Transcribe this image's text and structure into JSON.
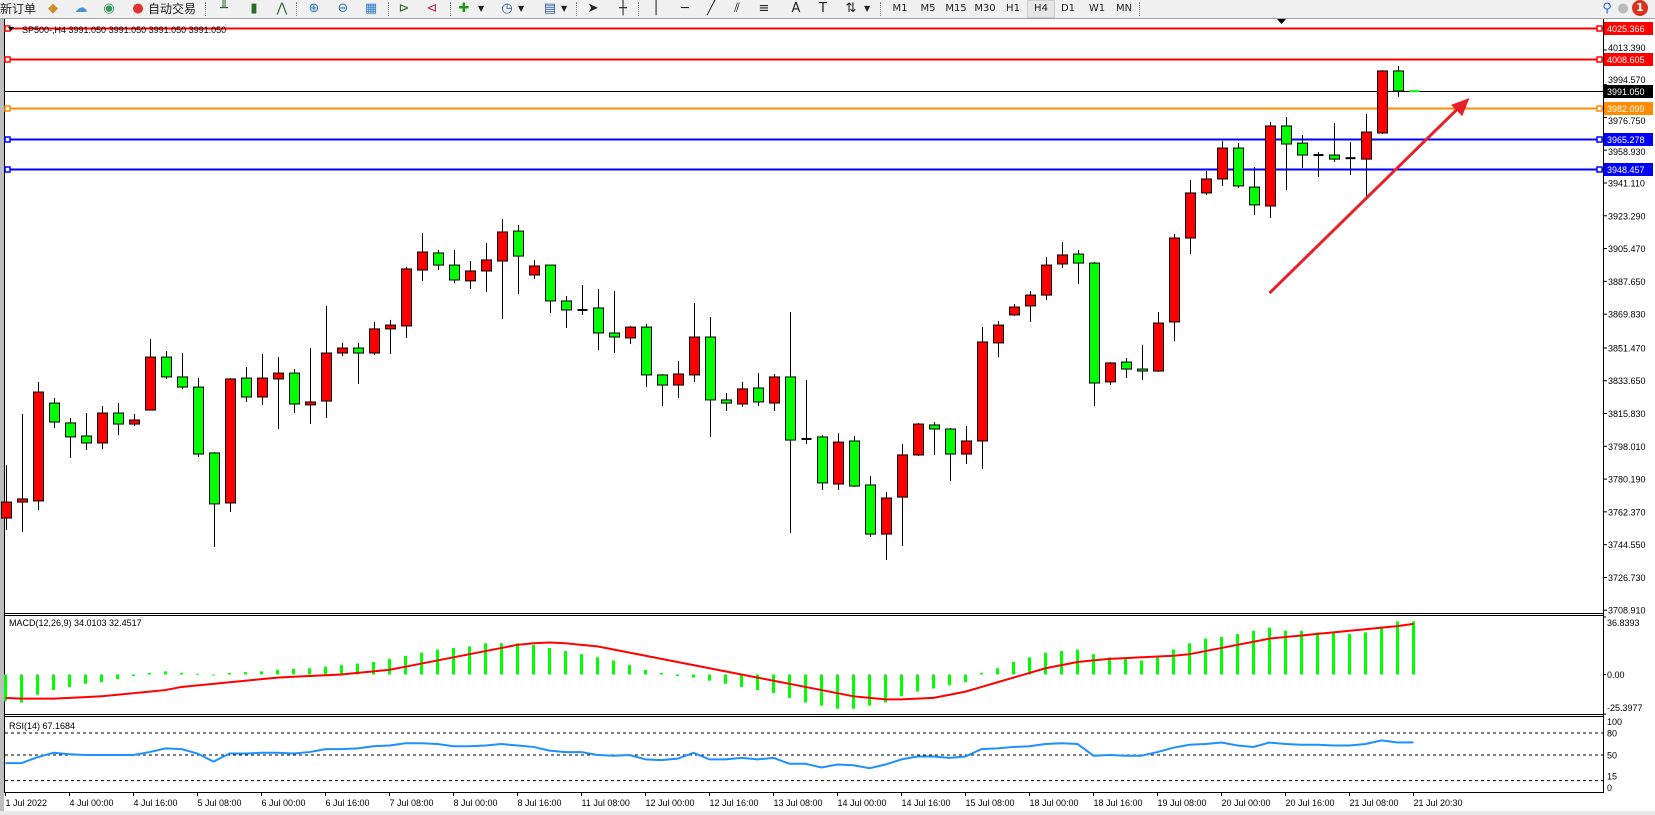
{
  "toolbar": {
    "new_order_label": "新订单",
    "auto_trading_label": "自动交易",
    "timeframes": [
      "M1",
      "M5",
      "M15",
      "M30",
      "H1",
      "H4",
      "D1",
      "W1",
      "MN"
    ],
    "active_timeframe": "H4",
    "notification_count": "1",
    "icons": [
      "metaeditor-icon",
      "market-watch-icon",
      "signals-icon",
      "auto-trading-icon",
      "bar-chart-icon",
      "candlestick-icon",
      "line-chart-icon",
      "zoom-in-icon",
      "zoom-out-icon",
      "tile-windows-icon",
      "autoscroll-icon",
      "chart-shift-icon",
      "indicators-icon",
      "periods-icon",
      "templates-icon",
      "cursor-icon",
      "crosshair-icon",
      "vertical-line-icon",
      "horizontal-line-icon",
      "trendline-icon",
      "equidistant-channel-icon",
      "fibonacci-icon",
      "text-icon",
      "text-label-icon",
      "arrows-icon",
      "search-icon",
      "notification-icon"
    ]
  },
  "chart": {
    "header": "SP500-,H4  3991.050 3991.050 3991.050 3991.050",
    "symbol": "SP500-",
    "timeframe": "H4",
    "bull_color": "#FF0000",
    "bear_color": "#00FF00",
    "price_ticks": [
      "4013.390",
      "3994.570",
      "3976.750",
      "3958.930",
      "3941.110",
      "3923.290",
      "3905.470",
      "3887.650",
      "3869.830",
      "3851.470",
      "3833.650",
      "3815.830",
      "3798.010",
      "3780.190",
      "3762.370",
      "3744.550",
      "3726.730",
      "3708.910"
    ],
    "horizontal_lines": [
      {
        "price": "4025.366",
        "color": "#FF0000"
      },
      {
        "price": "4008.605",
        "color": "#FF0000"
      },
      {
        "price": "3991.050",
        "color": "#000000"
      },
      {
        "price": "3982.099",
        "color": "#FF8C00"
      },
      {
        "price": "3965.278",
        "color": "#0000FF"
      },
      {
        "price": "3948.457",
        "color": "#0000FF"
      }
    ],
    "arrow": {
      "from": {
        "bar": 79,
        "price": 3881.3
      },
      "to": {
        "bar": 91.5,
        "price": 3987.3
      },
      "color": "#E8202A"
    },
    "candles_ohlc": [
      [
        3759.0,
        3787.8,
        3752.5,
        3767.7
      ],
      [
        3767.7,
        3815.6,
        3751.4,
        3769.4
      ],
      [
        3768.3,
        3833.0,
        3763.4,
        3827.5
      ],
      [
        3821.5,
        3824.3,
        3808.0,
        3811.2
      ],
      [
        3810.7,
        3813.4,
        3791.7,
        3803.1
      ],
      [
        3803.6,
        3816.1,
        3796.0,
        3799.8
      ],
      [
        3799.8,
        3819.9,
        3796.5,
        3816.1
      ],
      [
        3816.1,
        3821.5,
        3804.1,
        3810.1
      ],
      [
        3810.1,
        3815.6,
        3809.0,
        3812.3
      ],
      [
        3817.7,
        3856.3,
        3817.7,
        3846.5
      ],
      [
        3846.5,
        3849.8,
        3834.6,
        3835.7
      ],
      [
        3835.7,
        3848.7,
        3829.2,
        3830.2
      ],
      [
        3830.2,
        3835.1,
        3792.2,
        3793.8
      ],
      [
        3794.4,
        3794.9,
        3743.3,
        3766.7
      ],
      [
        3767.2,
        3835.1,
        3762.3,
        3834.6
      ],
      [
        3835.1,
        3841.1,
        3822.1,
        3824.8
      ],
      [
        3824.8,
        3848.2,
        3820.5,
        3835.1
      ],
      [
        3834.6,
        3846.5,
        3807.4,
        3837.8
      ],
      [
        3837.8,
        3840.0,
        3816.1,
        3821.0
      ],
      [
        3820.5,
        3851.4,
        3810.1,
        3822.1
      ],
      [
        3822.6,
        3874.3,
        3813.4,
        3848.7
      ],
      [
        3848.7,
        3854.2,
        3847.1,
        3851.4
      ],
      [
        3851.4,
        3854.2,
        3831.9,
        3848.7
      ],
      [
        3848.7,
        3865.6,
        3847.6,
        3861.8
      ],
      [
        3861.8,
        3866.7,
        3848.2,
        3863.9
      ],
      [
        3863.4,
        3895.5,
        3856.9,
        3894.4
      ],
      [
        3893.8,
        3913.9,
        3887.9,
        3903.6
      ],
      [
        3903.1,
        3904.7,
        3893.8,
        3896.5
      ],
      [
        3896.5,
        3904.7,
        3886.7,
        3888.4
      ],
      [
        3887.9,
        3898.7,
        3883.5,
        3893.3
      ],
      [
        3893.3,
        3908.5,
        3881.9,
        3899.3
      ],
      [
        3898.7,
        3921.5,
        3867.2,
        3914.5
      ],
      [
        3915.0,
        3918.3,
        3880.8,
        3901.4
      ],
      [
        3891.1,
        3899.3,
        3889.0,
        3896.0
      ],
      [
        3896.5,
        3896.5,
        3870.5,
        3877.0
      ],
      [
        3877.0,
        3879.7,
        3862.3,
        3872.1
      ],
      [
        3872.1,
        3885.7,
        3869.4,
        3872.0
      ],
      [
        3873.2,
        3883.5,
        3850.3,
        3859.6
      ],
      [
        3859.6,
        3882.4,
        3848.7,
        3857.4
      ],
      [
        3856.9,
        3863.4,
        3853.6,
        3862.8
      ],
      [
        3862.8,
        3864.5,
        3830.2,
        3836.8
      ],
      [
        3836.8,
        3837.3,
        3819.9,
        3831.3
      ],
      [
        3831.3,
        3844.4,
        3824.3,
        3837.3
      ],
      [
        3836.8,
        3875.9,
        3833.0,
        3857.4
      ],
      [
        3857.4,
        3868.3,
        3803.1,
        3823.2
      ],
      [
        3823.2,
        3827.0,
        3817.2,
        3821.5
      ],
      [
        3821.0,
        3833.0,
        3819.4,
        3829.2
      ],
      [
        3829.7,
        3837.8,
        3819.9,
        3822.1
      ],
      [
        3821.5,
        3837.3,
        3817.2,
        3835.7
      ],
      [
        3835.7,
        3871.0,
        3750.9,
        3801.4
      ],
      [
        3802.0,
        3834.0,
        3799.3,
        3801.9
      ],
      [
        3803.1,
        3804.1,
        3774.3,
        3778.1
      ],
      [
        3777.5,
        3805.2,
        3774.3,
        3800.3
      ],
      [
        3800.9,
        3803.6,
        3775.9,
        3776.4
      ],
      [
        3777.0,
        3781.9,
        3748.7,
        3750.3
      ],
      [
        3750.3,
        3773.2,
        3736.2,
        3769.9
      ],
      [
        3770.4,
        3799.3,
        3743.8,
        3793.3
      ],
      [
        3793.3,
        3810.7,
        3792.7,
        3810.1
      ],
      [
        3809.6,
        3811.2,
        3793.3,
        3807.4
      ],
      [
        3807.4,
        3808.0,
        3779.2,
        3793.8
      ],
      [
        3793.8,
        3809.0,
        3788.4,
        3800.9
      ],
      [
        3800.9,
        3862.8,
        3785.7,
        3854.7
      ],
      [
        3854.2,
        3866.1,
        3846.5,
        3863.9
      ],
      [
        3869.4,
        3875.3,
        3868.8,
        3873.7
      ],
      [
        3874.3,
        3882.4,
        3865.6,
        3880.2
      ],
      [
        3880.2,
        3900.9,
        3877.5,
        3896.5
      ],
      [
        3897.1,
        3909.0,
        3894.9,
        3902.0
      ],
      [
        3902.5,
        3904.7,
        3886.2,
        3897.6
      ],
      [
        3897.6,
        3898.2,
        3819.9,
        3832.4
      ],
      [
        3833.0,
        3843.8,
        3831.3,
        3843.3
      ],
      [
        3843.8,
        3846.0,
        3835.1,
        3840.0
      ],
      [
        3840.0,
        3853.1,
        3834.0,
        3838.9
      ],
      [
        3838.9,
        3871.0,
        3838.4,
        3865.0
      ],
      [
        3865.6,
        3913.4,
        3855.2,
        3911.2
      ],
      [
        3911.2,
        3942.7,
        3902.5,
        3935.7
      ],
      [
        3935.7,
        3947.6,
        3934.6,
        3943.3
      ],
      [
        3943.3,
        3963.9,
        3939.5,
        3960.1
      ],
      [
        3960.1,
        3962.8,
        3938.4,
        3939.5
      ],
      [
        3938.9,
        3949.8,
        3923.7,
        3929.2
      ],
      [
        3928.6,
        3974.3,
        3922.1,
        3972.1
      ],
      [
        3972.1,
        3977.0,
        3937.3,
        3962.3
      ],
      [
        3962.8,
        3967.2,
        3949.3,
        3956.3
      ],
      [
        3956.3,
        3957.9,
        3944.4,
        3956.2
      ],
      [
        3956.3,
        3973.7,
        3952.5,
        3954.1
      ],
      [
        3954.6,
        3963.4,
        3945.5,
        3954.5
      ],
      [
        3954.1,
        3978.6,
        3932.9,
        3968.8
      ],
      [
        3968.3,
        4002.5,
        3967.7,
        4002.0
      ],
      [
        4002.0,
        4004.7,
        3988.0,
        3991.1
      ],
      [
        3991.05,
        3991.05,
        3991.05,
        3991.05
      ]
    ]
  },
  "macd": {
    "label": "MACD(12,26,9) 34.0103 32.4517",
    "axis_ticks": [
      "36.8393",
      "0.00",
      "-25.3977"
    ],
    "range": [
      -25.3977,
      36.8393
    ],
    "histogram_color": "#00FF00",
    "signal_color": "#FF0000",
    "histogram": [
      -17,
      -18,
      -13,
      -10,
      -8,
      -6,
      -5,
      -3,
      -1,
      1,
      2,
      1,
      0.5,
      -0.5,
      1,
      1.5,
      2,
      3,
      3.5,
      4,
      5,
      6,
      7,
      8,
      10,
      12,
      14,
      16,
      17,
      18,
      20,
      20,
      20,
      19,
      17,
      15,
      13,
      11,
      9,
      6,
      3,
      1,
      -1,
      -2,
      -4,
      -6,
      -8,
      -10,
      -12,
      -15,
      -18,
      -20,
      -22,
      -22,
      -20,
      -18,
      -14,
      -11,
      -9,
      -7,
      -5,
      1,
      4,
      8,
      11,
      14,
      15,
      16,
      13,
      11,
      10,
      9,
      12,
      16,
      20,
      23,
      24,
      26,
      28,
      30,
      28,
      28,
      27,
      27,
      26,
      27,
      30,
      34,
      34.0103
    ],
    "signal": [
      -15,
      -15.5,
      -15.5,
      -15.5,
      -15,
      -14.5,
      -14,
      -13,
      -12,
      -11,
      -10,
      -8,
      -7,
      -6,
      -5,
      -4,
      -3,
      -2,
      -1.5,
      -1,
      -0.5,
      0,
      1,
      2,
      3,
      5,
      7,
      9,
      11,
      13,
      15,
      17,
      19,
      20,
      20.5,
      20,
      19,
      18,
      16,
      14,
      12,
      10,
      8,
      6,
      4,
      2,
      0,
      -2,
      -4,
      -6,
      -8,
      -10,
      -12,
      -14,
      -15,
      -16,
      -16,
      -15.5,
      -15,
      -13,
      -11,
      -8,
      -5,
      -2,
      1,
      4,
      6,
      8,
      9,
      10,
      10.5,
      11,
      11.5,
      12,
      13,
      15,
      17,
      19,
      21,
      23,
      24,
      25,
      26,
      27,
      28,
      29,
      30,
      31,
      32.4517
    ]
  },
  "rsi": {
    "label": "RSI(14) 67.1684",
    "axis_ticks": [
      "100",
      "80",
      "50",
      "15",
      "0"
    ],
    "levels": [
      80,
      50,
      15
    ],
    "color": "#1E90FF",
    "values": [
      39,
      39,
      47,
      53,
      51,
      50,
      50,
      50,
      50,
      54,
      59,
      58,
      52,
      41,
      52,
      52,
      53,
      53,
      52,
      54,
      58,
      58,
      59,
      62,
      63,
      66,
      66,
      65,
      62,
      62,
      63,
      65,
      63,
      61,
      56,
      54,
      54,
      50,
      49,
      50,
      44,
      43,
      45,
      53,
      44,
      44,
      46,
      44,
      46,
      38,
      38,
      33,
      37,
      36,
      32,
      37,
      44,
      48,
      48,
      46,
      48,
      58,
      59,
      61,
      62,
      65,
      66,
      65,
      49,
      50,
      49,
      49,
      54,
      60,
      64,
      65,
      67,
      63,
      61,
      67,
      65,
      64,
      64,
      63,
      63,
      65,
      70,
      67,
      67.1684
    ]
  },
  "time_axis": [
    {
      "label": "1 Jul 2022",
      "candle_index": 0
    },
    {
      "label": "4 Jul 00:00",
      "candle_index": 4
    },
    {
      "label": "4 Jul 16:00",
      "candle_index": 8
    },
    {
      "label": "5 Jul 08:00",
      "candle_index": 12
    },
    {
      "label": "6 Jul 00:00",
      "candle_index": 16
    },
    {
      "label": "6 Jul 16:00",
      "candle_index": 20
    },
    {
      "label": "7 Jul 08:00",
      "candle_index": 24
    },
    {
      "label": "8 Jul 00:00",
      "candle_index": 28
    },
    {
      "label": "8 Jul 16:00",
      "candle_index": 32
    },
    {
      "label": "11 Jul 08:00",
      "candle_index": 36
    },
    {
      "label": "12 Jul 00:00",
      "candle_index": 40
    },
    {
      "label": "12 Jul 16:00",
      "candle_index": 44
    },
    {
      "label": "13 Jul 08:00",
      "candle_index": 48
    },
    {
      "label": "14 Jul 00:00",
      "candle_index": 52
    },
    {
      "label": "14 Jul 16:00",
      "candle_index": 56
    },
    {
      "label": "15 Jul 08:00",
      "candle_index": 60
    },
    {
      "label": "18 Jul 00:00",
      "candle_index": 64
    },
    {
      "label": "18 Jul 16:00",
      "candle_index": 68
    },
    {
      "label": "19 Jul 08:00",
      "candle_index": 72
    },
    {
      "label": "20 Jul 00:00",
      "candle_index": 76
    },
    {
      "label": "20 Jul 16:00",
      "candle_index": 80
    },
    {
      "label": "21 Jul 08:00",
      "candle_index": 84
    },
    {
      "label": "21 Jul 20:30",
      "candle_index": 88
    }
  ]
}
